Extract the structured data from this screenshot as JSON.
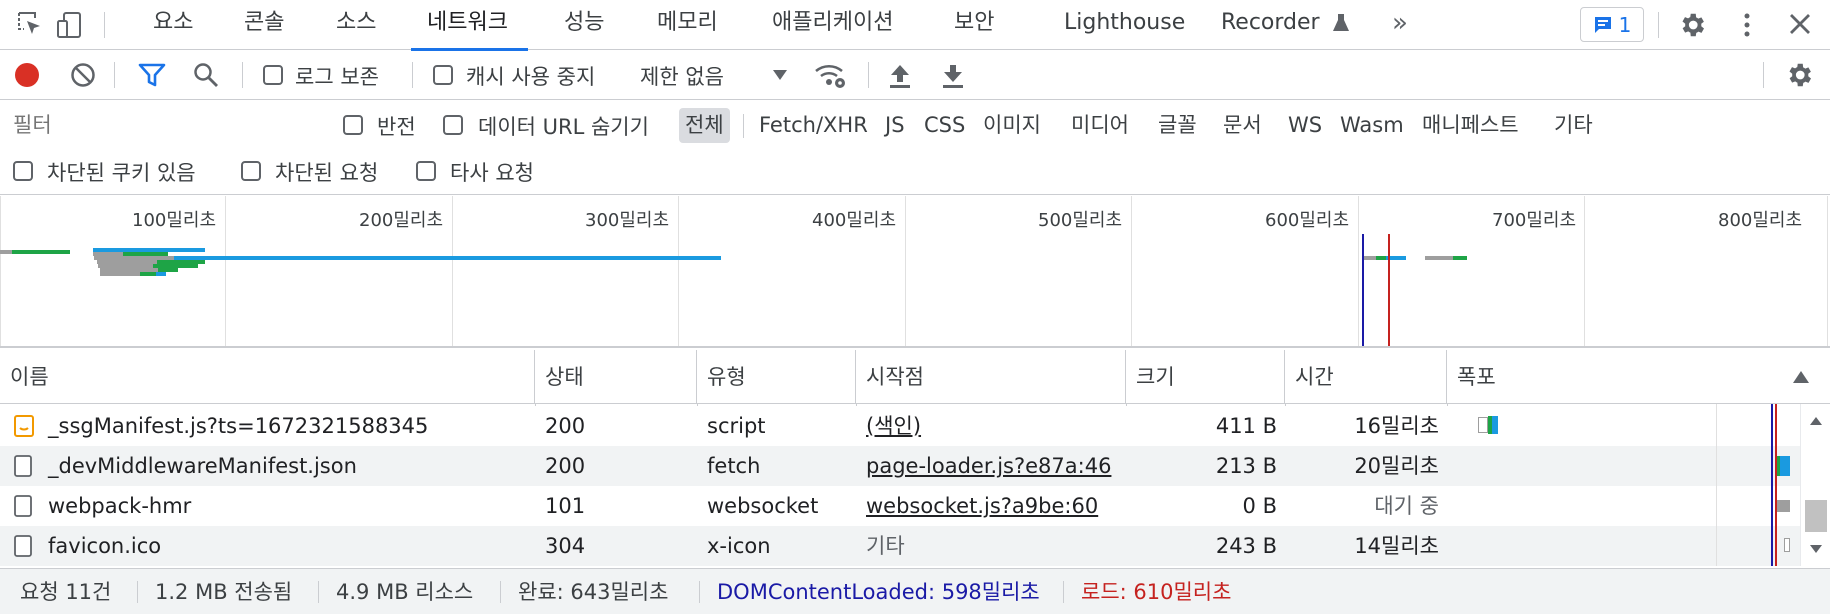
{
  "colors": {
    "accent": "#1a73e8",
    "record": "#d93025",
    "dom_line": "#1a1aa6",
    "load_line": "#c5221f",
    "bar_blue": "#1a9ae0",
    "bar_green": "#1ea446",
    "bar_gray": "#9e9e9e"
  },
  "tabs": [
    "요소",
    "콘솔",
    "소스",
    "네트워크",
    "성능",
    "메모리",
    "애플리케이션",
    "보안",
    "Lighthouse",
    "Recorder"
  ],
  "active_tab": "네트워크",
  "issues_count": "1",
  "toolbar": {
    "preserve_log": "로그 보존",
    "disable_cache": "캐시 사용 중지",
    "throttle": "제한 없음"
  },
  "filter": {
    "placeholder": "필터",
    "invert": "반전",
    "hide_data_urls": "데이터 URL 숨기기",
    "types": [
      "전체",
      "Fetch/XHR",
      "JS",
      "CSS",
      "이미지",
      "미디어",
      "글꼴",
      "문서",
      "WS",
      "Wasm",
      "매니페스트",
      "기타"
    ],
    "selected_type": "전체",
    "blocked_cookies": "차단된 쿠키 있음",
    "blocked_requests": "차단된 요청",
    "third_party": "타사 요청"
  },
  "overview_ticks": [
    "100밀리초",
    "200밀리초",
    "300밀리초",
    "400밀리초",
    "500밀리초",
    "600밀리초",
    "700밀리초",
    "800밀리초"
  ],
  "table": {
    "headers": [
      "이름",
      "상태",
      "유형",
      "시작점",
      "크기",
      "시간",
      "폭포"
    ],
    "rows": [
      {
        "name": "_ssgManifest.js?ts=1672321588345",
        "icon": "script-file-icon",
        "status": "200",
        "type": "script",
        "initiator": "(색인)",
        "size": "411 B",
        "time": "16밀리초"
      },
      {
        "name": "_devMiddlewareManifest.json",
        "icon": "document-file-icon",
        "status": "200",
        "type": "fetch",
        "initiator": "page-loader.js?e87a:46",
        "size": "213 B",
        "time": "20밀리초"
      },
      {
        "name": "webpack-hmr",
        "icon": "document-file-icon",
        "status": "101",
        "type": "websocket",
        "initiator": "websocket.js?a9be:60",
        "size": "0 B",
        "time": "대기 중"
      },
      {
        "name": "favicon.ico",
        "icon": "document-file-icon",
        "status": "304",
        "type": "x-icon",
        "initiator": "기타",
        "size": "243 B",
        "time": "14밀리초"
      }
    ]
  },
  "status": {
    "requests": "요청 11건",
    "transferred": "1.2 MB 전송됨",
    "resources": "4.9 MB 리소스",
    "finish": "완료: 643밀리초",
    "dom_content_loaded": "DOMContentLoaded: 598밀리초",
    "load": "로드: 610밀리초"
  }
}
